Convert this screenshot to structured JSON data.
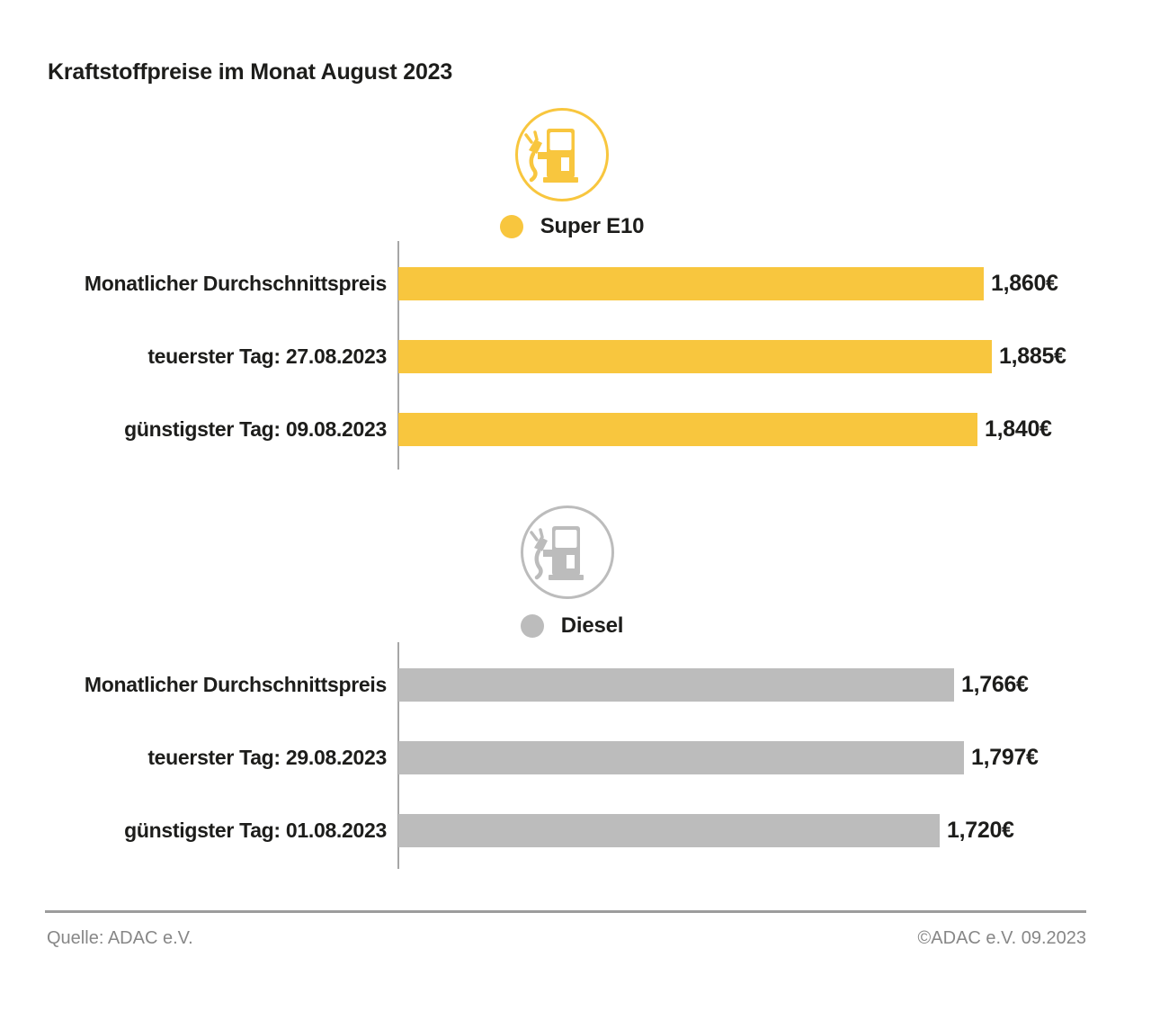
{
  "title": "Kraftstoffpreise im Monat August 2023",
  "colors": {
    "super_e10": "#F8C63E",
    "diesel": "#BCBCBC",
    "text": "#1D1D1B",
    "muted": "#878787",
    "axis": "#A6A6A6",
    "divider": "#9C9C9C"
  },
  "footer": {
    "source": "Quelle: ADAC e.V.",
    "copyright": "©ADAC e.V. 09.2023"
  },
  "chart_data": [
    {
      "type": "bar",
      "orientation": "horizontal",
      "title": "Super E10",
      "icon": "fuel-pump-icon",
      "color": "#F8C63E",
      "categories": [
        "Monatlicher Durchschnittspreis",
        "teuerster Tag: 27.08.2023",
        "günstigster Tag: 09.08.2023"
      ],
      "values": [
        1.86,
        1.885,
        1.84
      ],
      "value_labels": [
        "1,860€",
        "1,885€",
        "1,840€"
      ],
      "xlim": [
        0,
        1.885
      ],
      "grid": false,
      "legend_position": "top-center"
    },
    {
      "type": "bar",
      "orientation": "horizontal",
      "title": "Diesel",
      "icon": "fuel-pump-icon",
      "color": "#BCBCBC",
      "categories": [
        "Monatlicher Durchschnittspreis",
        "teuerster Tag: 29.08.2023",
        "günstigster Tag: 01.08.2023"
      ],
      "values": [
        1.766,
        1.797,
        1.72
      ],
      "value_labels": [
        "1,766€",
        "1,797€",
        "1,720€"
      ],
      "xlim": [
        0,
        1.885
      ],
      "grid": false,
      "legend_position": "top-center"
    }
  ]
}
